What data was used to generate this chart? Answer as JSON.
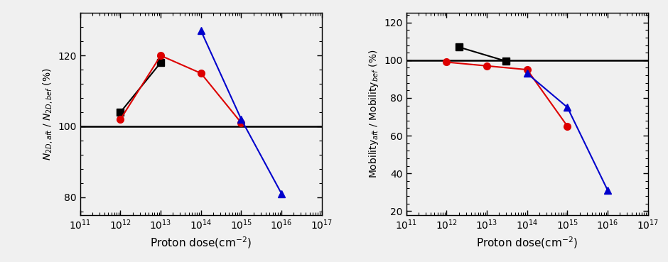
{
  "left": {
    "ylabel": "$\\it{N}$$_{2D,aft}$ / $\\it{N}$$_{2D,bef}$ (%)",
    "xlabel": "Proton dose(cm$^{-2}$)",
    "ylim": [
      75,
      132
    ],
    "yticks": [
      80,
      100,
      120
    ],
    "xlim": [
      100000000000.0,
      1e+17
    ],
    "hline_y": 100,
    "black_x": [
      1000000000000.0,
      10000000000000.0
    ],
    "black_y": [
      104,
      118
    ],
    "red_x": [
      1000000000000.0,
      10000000000000.0,
      100000000000000.0,
      1000000000000000.0
    ],
    "red_y": [
      102,
      120,
      115,
      101
    ],
    "blue_x": [
      100000000000000.0,
      1000000000000000.0,
      1e+16
    ],
    "blue_y": [
      127,
      102,
      81
    ]
  },
  "right": {
    "ylabel": "Mobility$_{aft}$ / Mobility$_{bef}$ (%)",
    "xlabel": "Proton dose(cm$^{-2}$)",
    "ylim": [
      18,
      125
    ],
    "yticks": [
      20,
      40,
      60,
      80,
      100,
      120
    ],
    "xlim": [
      100000000000.0,
      1e+17
    ],
    "hline_y": 100,
    "black_x": [
      2000000000000.0,
      30000000000000.0
    ],
    "black_y": [
      107,
      99.5
    ],
    "red_x": [
      1000000000000.0,
      10000000000000.0,
      100000000000000.0,
      1000000000000000.0
    ],
    "red_y": [
      99,
      97,
      95,
      65
    ],
    "blue_x": [
      100000000000000.0,
      1000000000000000.0,
      1e+16
    ],
    "blue_y": [
      93,
      75,
      31
    ]
  },
  "black_color": "#000000",
  "red_color": "#dd0000",
  "blue_color": "#0000cc",
  "marker_size": 7,
  "line_width": 1.5,
  "bg_color": "#f0f0f0"
}
